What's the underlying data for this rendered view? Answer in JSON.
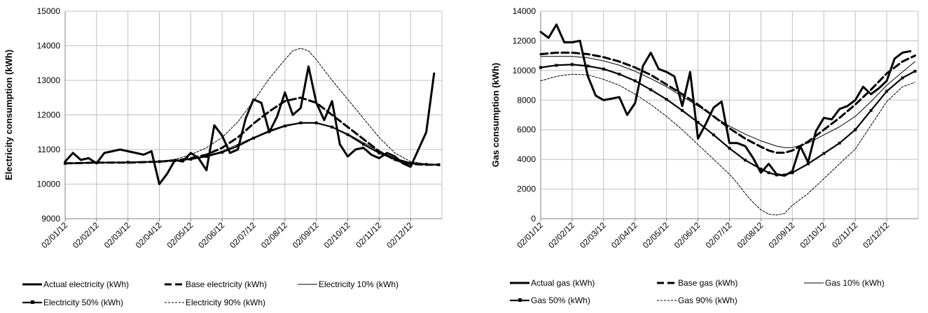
{
  "chart_data": [
    {
      "type": "line",
      "ylabel": "Electricity consumption (kWh)",
      "xlabel": "",
      "ylim": [
        9000,
        15000
      ],
      "yticks": [
        9000,
        10000,
        11000,
        12000,
        13000,
        14000,
        15000
      ],
      "categories": [
        "02/01/12",
        "02/02/12",
        "02/03/12",
        "02/04/12",
        "02/05/12",
        "02/06/12",
        "02/07/12",
        "02/08/12",
        "02/09/12",
        "02/10/12",
        "02/11/12",
        "02/12/12"
      ],
      "grid": true,
      "legend": "bottom",
      "series": [
        {
          "name": "Actual electricity (kWh)",
          "style": "thick",
          "color": "#000000",
          "x": [
            0,
            0.25,
            0.5,
            0.75,
            1,
            1.25,
            1.5,
            1.75,
            2,
            2.25,
            2.5,
            2.75,
            3,
            3.25,
            3.5,
            3.75,
            4,
            4.25,
            4.5,
            4.75,
            5,
            5.25,
            5.5,
            5.75,
            6,
            6.25,
            6.5,
            6.75,
            7,
            7.25,
            7.5,
            7.75,
            8,
            8.25,
            8.5,
            8.75,
            9,
            9.25,
            9.5,
            9.75,
            10,
            10.25,
            10.5,
            10.75,
            11,
            11.25,
            11.5,
            11.75
          ],
          "values": [
            10650,
            10900,
            10700,
            10750,
            10600,
            10900,
            10950,
            11000,
            10950,
            10900,
            10850,
            10950,
            10000,
            10300,
            10700,
            10650,
            10900,
            10750,
            10400,
            11700,
            11400,
            10900,
            11000,
            11900,
            12450,
            12350,
            11500,
            11950,
            12650,
            12000,
            12200,
            13400,
            12350,
            11850,
            12400,
            11150,
            10800,
            11000,
            11050,
            10850,
            10750,
            10900,
            10800,
            10600,
            10500,
            11000,
            11500,
            13200
          ]
        },
        {
          "name": "Base electricity (kWh)",
          "style": "dashed",
          "color": "#000000",
          "x": [
            0,
            1,
            2,
            3,
            3.5,
            4,
            4.5,
            5,
            5.5,
            6,
            6.5,
            7,
            7.5,
            8,
            8.5,
            9,
            9.5,
            10,
            10.5,
            11,
            11.5,
            11.9
          ],
          "values": [
            10600,
            10620,
            10620,
            10650,
            10680,
            10750,
            10850,
            11050,
            11350,
            11750,
            12100,
            12400,
            12500,
            12350,
            12000,
            11650,
            11300,
            10950,
            10700,
            10580,
            10560,
            10560
          ]
        },
        {
          "name": "Electricity 10% (kWh)",
          "style": "thin",
          "color": "#000000",
          "x": [
            0,
            1,
            2,
            3,
            3.5,
            4,
            4.5,
            5,
            5.5,
            6,
            6.5,
            7,
            7.5,
            8,
            8.5,
            9,
            9.5,
            10,
            10.5,
            11,
            11.5,
            11.9
          ],
          "values": [
            10600,
            10620,
            10630,
            10650,
            10680,
            10730,
            10820,
            10950,
            11150,
            11350,
            11550,
            11700,
            11780,
            11770,
            11650,
            11450,
            11200,
            10950,
            10750,
            10620,
            10580,
            10570
          ]
        },
        {
          "name": "Electricity 50% (kWh)",
          "style": "marker",
          "color": "#000000",
          "x": [
            0,
            1,
            2,
            3,
            3.5,
            4,
            4.5,
            5,
            5.5,
            6,
            6.5,
            7,
            7.5,
            8,
            8.5,
            9,
            9.5,
            10,
            10.5,
            11,
            11.5,
            11.9
          ],
          "values": [
            10600,
            10620,
            10630,
            10650,
            10680,
            10720,
            10800,
            10920,
            11100,
            11330,
            11520,
            11680,
            11770,
            11770,
            11650,
            11430,
            11150,
            10900,
            10720,
            10600,
            10570,
            10560
          ]
        },
        {
          "name": "Electricity 90% (kWh)",
          "style": "dotted",
          "color": "#000000",
          "x": [
            0,
            1,
            2,
            3,
            3.5,
            4,
            4.5,
            5,
            5.5,
            6,
            6.5,
            7,
            7.25,
            7.5,
            7.75,
            8,
            8.5,
            9,
            9.5,
            10,
            10.5,
            11,
            11.5,
            11.9
          ],
          "values": [
            10600,
            10620,
            10630,
            10660,
            10720,
            10850,
            11050,
            11350,
            11800,
            12400,
            13050,
            13600,
            13850,
            13930,
            13850,
            13600,
            13000,
            12450,
            11900,
            11350,
            10900,
            10650,
            10580,
            10560
          ]
        }
      ]
    },
    {
      "type": "line",
      "ylabel": "Gas consumption (kWh)",
      "xlabel": "",
      "ylim": [
        0,
        14000
      ],
      "yticks": [
        0,
        2000,
        4000,
        6000,
        8000,
        10000,
        12000,
        14000
      ],
      "categories": [
        "02/01/12",
        "02/02/12",
        "02/03/12",
        "02/04/12",
        "02/05/12",
        "02/06/12",
        "02/07/12",
        "02/08/12",
        "02/09/12",
        "02/10/12",
        "02/11/12",
        "02/12/12"
      ],
      "grid": true,
      "legend": "bottom",
      "series": [
        {
          "name": "Actual gas (kWh)",
          "style": "thick",
          "color": "#000000",
          "x": [
            0,
            0.25,
            0.5,
            0.75,
            1,
            1.25,
            1.5,
            1.75,
            2,
            2.25,
            2.5,
            2.75,
            3,
            3.25,
            3.5,
            3.75,
            4,
            4.25,
            4.5,
            4.75,
            5,
            5.25,
            5.5,
            5.75,
            6,
            6.25,
            6.5,
            6.75,
            7,
            7.25,
            7.5,
            7.75,
            8,
            8.25,
            8.5,
            8.75,
            9,
            9.25,
            9.5,
            9.75,
            10,
            10.25,
            10.5,
            10.75,
            11,
            11.25,
            11.5,
            11.75
          ],
          "values": [
            12600,
            12200,
            13100,
            11900,
            11900,
            12000,
            9600,
            8300,
            8000,
            8100,
            8200,
            7000,
            7800,
            10300,
            11200,
            10100,
            9900,
            9600,
            7600,
            9900,
            5400,
            6400,
            7500,
            7900,
            5100,
            5100,
            4900,
            4100,
            3100,
            3700,
            3000,
            2900,
            3200,
            4900,
            3800,
            5900,
            6800,
            6700,
            7400,
            7600,
            8000,
            8900,
            8400,
            8800,
            9300,
            10800,
            11200,
            11300
          ]
        },
        {
          "name": "Base gas (kWh)",
          "style": "dashed",
          "color": "#000000",
          "x": [
            0,
            0.5,
            1,
            1.5,
            2,
            2.5,
            3,
            3.5,
            4,
            4.5,
            5,
            5.5,
            6,
            6.5,
            7,
            7.25,
            7.5,
            7.75,
            8,
            8.5,
            9,
            9.5,
            10,
            10.5,
            11,
            11.5,
            11.9
          ],
          "values": [
            11100,
            11200,
            11200,
            11100,
            10900,
            10600,
            10200,
            9700,
            9050,
            8400,
            7700,
            6900,
            6100,
            5400,
            4850,
            4600,
            4450,
            4450,
            4600,
            5200,
            6000,
            6800,
            7700,
            8700,
            9800,
            10600,
            11000
          ]
        },
        {
          "name": "Gas 10% (kWh)",
          "style": "thin",
          "color": "#000000",
          "x": [
            0,
            0.5,
            1,
            1.5,
            2,
            2.5,
            3,
            3.5,
            4,
            4.5,
            5,
            5.5,
            6,
            6.5,
            7,
            7.5,
            7.75,
            8,
            8.5,
            9,
            9.5,
            10,
            10.5,
            11,
            11.5,
            11.9
          ],
          "values": [
            10950,
            10950,
            10950,
            10850,
            10650,
            10350,
            9950,
            9450,
            8900,
            8250,
            7600,
            6900,
            6250,
            5700,
            5250,
            4900,
            4800,
            4800,
            5100,
            5650,
            6200,
            6900,
            7900,
            9000,
            9900,
            10600
          ]
        },
        {
          "name": "Gas 50% (kWh)",
          "style": "marker",
          "color": "#000000",
          "x": [
            0,
            0.5,
            1,
            1.5,
            2,
            2.5,
            3,
            3.5,
            4,
            4.5,
            5,
            5.5,
            6,
            6.5,
            7,
            7.25,
            7.5,
            7.75,
            8,
            8.5,
            9,
            9.5,
            10,
            10.5,
            11,
            11.5,
            11.9
          ],
          "values": [
            10200,
            10350,
            10400,
            10300,
            10100,
            9750,
            9300,
            8700,
            8050,
            7300,
            6500,
            5650,
            4750,
            3950,
            3350,
            3100,
            2950,
            2950,
            3100,
            3700,
            4400,
            5100,
            6000,
            7300,
            8600,
            9500,
            9950
          ]
        },
        {
          "name": "Gas 90% (kWh)",
          "style": "dotted",
          "color": "#000000",
          "x": [
            0,
            0.5,
            1,
            1.5,
            2,
            2.5,
            3,
            3.5,
            4,
            4.5,
            5,
            5.5,
            6,
            6.25,
            6.5,
            6.75,
            7,
            7.25,
            7.5,
            7.75,
            8,
            8.5,
            9,
            9.5,
            10,
            10.5,
            11,
            11.5,
            11.9
          ],
          "values": [
            9300,
            9600,
            9750,
            9700,
            9400,
            9000,
            8400,
            7700,
            6900,
            6000,
            5000,
            4000,
            3000,
            2400,
            1700,
            1100,
            600,
            300,
            250,
            350,
            900,
            1700,
            2700,
            3700,
            4700,
            6300,
            7900,
            8900,
            9200
          ]
        }
      ]
    }
  ]
}
